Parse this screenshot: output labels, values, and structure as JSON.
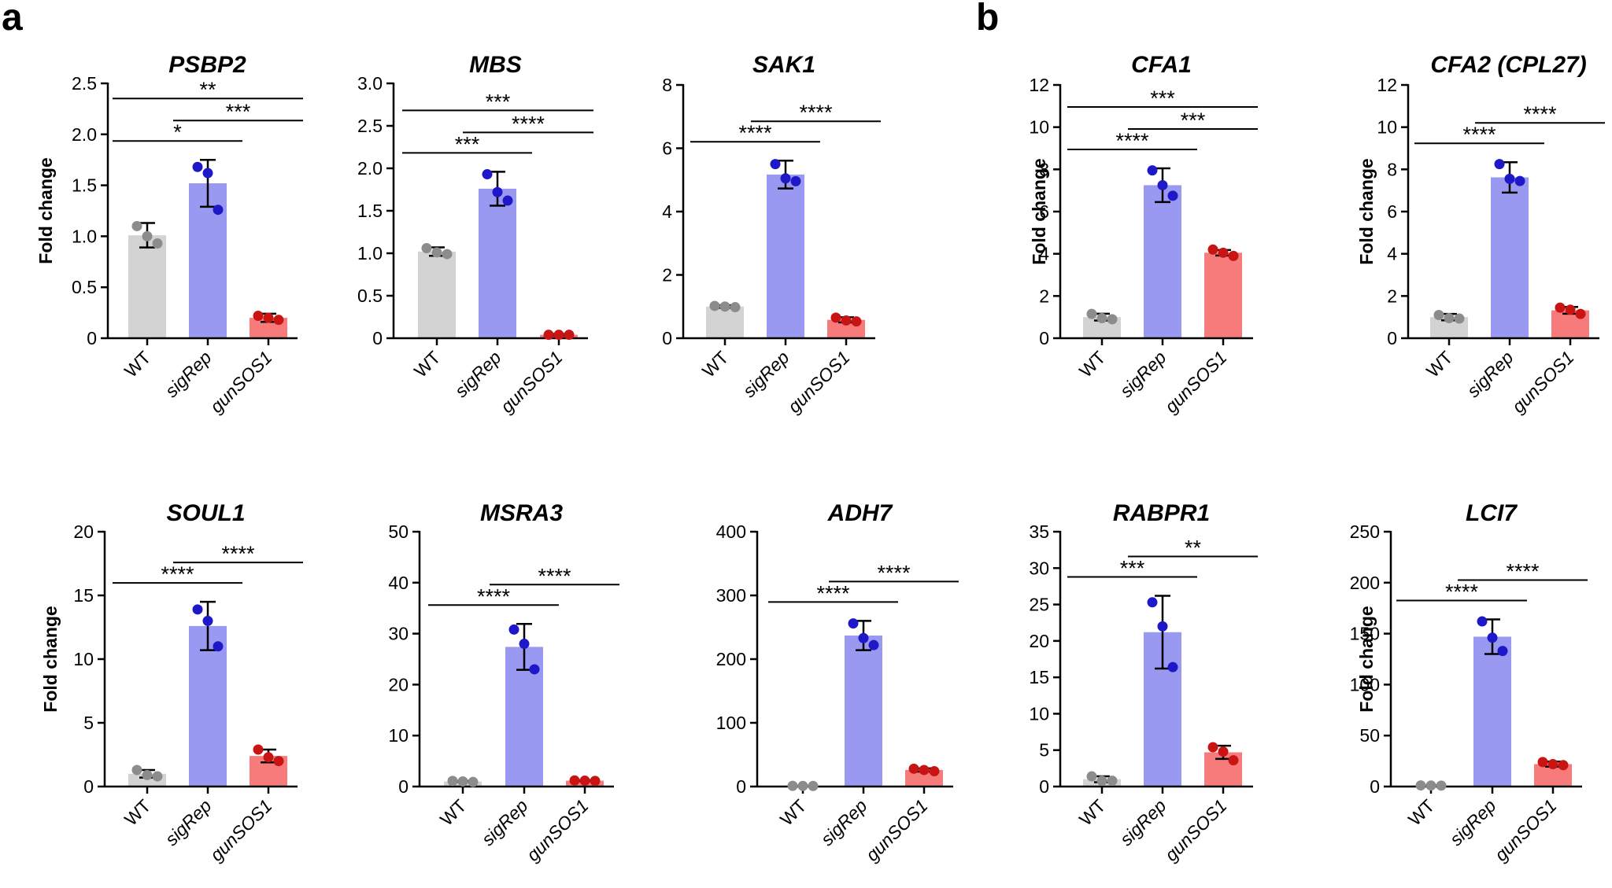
{
  "panel_labels": [
    "a",
    "b"
  ],
  "chart_data": [
    {
      "type": "bar",
      "title": "PSBP2",
      "ylabel": "Fold change",
      "ylim": [
        0,
        2.5
      ],
      "yticks": [
        "0",
        "0.5",
        "1.0",
        "1.5",
        "2.0",
        "2.5"
      ],
      "categories": [
        "WT",
        "sigRep",
        "gunSOS1"
      ],
      "italic_categories": [
        false,
        true,
        true
      ],
      "values": [
        1.01,
        1.52,
        0.2
      ],
      "errors": [
        0.12,
        0.23,
        0.04
      ],
      "points": [
        [
          1.1,
          1.0,
          0.93
        ],
        [
          1.68,
          1.62,
          1.26
        ],
        [
          0.22,
          0.2,
          0.18
        ]
      ],
      "colors": {
        "bars": [
          "#d3d3d3",
          "#9999f2",
          "#f77b7b"
        ],
        "points": [
          "#8c8c8c",
          "#1f18c9",
          "#c91414"
        ]
      },
      "significance": [
        {
          "from": 0,
          "to": 1,
          "label": "*"
        },
        {
          "from": 1,
          "to": 2,
          "label": "***"
        },
        {
          "from": 0,
          "to": 2,
          "label": "**"
        }
      ]
    },
    {
      "type": "bar",
      "title": "MBS",
      "ylabel": "",
      "ylim": [
        0,
        3.0
      ],
      "yticks": [
        "0",
        "0.5",
        "1.0",
        "1.5",
        "2.0",
        "2.5",
        "3.0"
      ],
      "categories": [
        "WT",
        "sigRep",
        "gunSOS1"
      ],
      "italic_categories": [
        false,
        true,
        true
      ],
      "values": [
        1.02,
        1.76,
        0.04
      ],
      "errors": [
        0.05,
        0.2,
        0.01
      ],
      "points": [
        [
          1.06,
          1.01,
          0.99
        ],
        [
          1.93,
          1.72,
          1.62
        ],
        [
          0.04,
          0.04,
          0.04
        ]
      ],
      "colors": {
        "bars": [
          "#d3d3d3",
          "#9999f2",
          "#f77b7b"
        ],
        "points": [
          "#8c8c8c",
          "#1f18c9",
          "#c91414"
        ]
      },
      "significance": [
        {
          "from": 0,
          "to": 1,
          "label": "***"
        },
        {
          "from": 1,
          "to": 2,
          "label": "****"
        },
        {
          "from": 0,
          "to": 2,
          "label": "***"
        }
      ]
    },
    {
      "type": "bar",
      "title": "SAK1",
      "ylabel": "",
      "ylim": [
        0,
        8
      ],
      "yticks": [
        "0",
        "2",
        "4",
        "6",
        "8"
      ],
      "categories": [
        "WT",
        "sigRep",
        "gunSOS1"
      ],
      "italic_categories": [
        false,
        true,
        true
      ],
      "values": [
        1.0,
        5.17,
        0.58
      ],
      "errors": [
        0.04,
        0.44,
        0.08
      ],
      "points": [
        [
          1.02,
          1.0,
          0.98
        ],
        [
          5.5,
          5.05,
          4.96
        ],
        [
          0.65,
          0.56,
          0.53
        ]
      ],
      "colors": {
        "bars": [
          "#d3d3d3",
          "#9999f2",
          "#f77b7b"
        ],
        "points": [
          "#8c8c8c",
          "#1f18c9",
          "#c91414"
        ]
      },
      "significance": [
        {
          "from": 0,
          "to": 1,
          "label": "****"
        },
        {
          "from": 1,
          "to": 2,
          "label": "****"
        }
      ]
    },
    {
      "type": "bar",
      "title": "CFA1",
      "ylabel": "Fold change",
      "ylim": [
        0,
        12
      ],
      "yticks": [
        "0",
        "2",
        "4",
        "6",
        "8",
        "10",
        "12"
      ],
      "categories": [
        "WT",
        "sigRep",
        "gunSOS1"
      ],
      "italic_categories": [
        false,
        true,
        true
      ],
      "values": [
        1.0,
        7.25,
        4.05
      ],
      "errors": [
        0.16,
        0.8,
        0.13
      ],
      "points": [
        [
          1.15,
          0.95,
          0.9
        ],
        [
          7.95,
          7.25,
          6.75
        ],
        [
          4.2,
          4.05,
          3.9
        ]
      ],
      "colors": {
        "bars": [
          "#d3d3d3",
          "#9999f2",
          "#f77b7b"
        ],
        "points": [
          "#8c8c8c",
          "#1f18c9",
          "#c91414"
        ]
      },
      "significance": [
        {
          "from": 0,
          "to": 1,
          "label": "****"
        },
        {
          "from": 1,
          "to": 2,
          "label": "***"
        },
        {
          "from": 0,
          "to": 2,
          "label": "***"
        }
      ]
    },
    {
      "type": "bar",
      "title": "CFA2 (CPL27)",
      "ylabel": "Fold change",
      "ylim": [
        0,
        12
      ],
      "yticks": [
        "0",
        "2",
        "4",
        "6",
        "8",
        "10",
        "12"
      ],
      "categories": [
        "WT",
        "sigRep",
        "gunSOS1"
      ],
      "italic_categories": [
        false,
        true,
        true
      ],
      "values": [
        1.0,
        7.62,
        1.32
      ],
      "errors": [
        0.15,
        0.72,
        0.16
      ],
      "points": [
        [
          1.1,
          0.95,
          0.93
        ],
        [
          8.25,
          7.55,
          7.45
        ],
        [
          1.45,
          1.35,
          1.15
        ]
      ],
      "colors": {
        "bars": [
          "#d3d3d3",
          "#9999f2",
          "#f77b7b"
        ],
        "points": [
          "#8c8c8c",
          "#1f18c9",
          "#c91414"
        ]
      },
      "significance": [
        {
          "from": 0,
          "to": 1,
          "label": "****"
        },
        {
          "from": 1,
          "to": 2,
          "label": "****"
        }
      ]
    },
    {
      "type": "bar",
      "title": "SOUL1",
      "ylabel": "Fold change",
      "ylim": [
        0,
        20
      ],
      "yticks": [
        "0",
        "5",
        "10",
        "15",
        "20"
      ],
      "categories": [
        "WT",
        "sigRep",
        "gunSOS1"
      ],
      "italic_categories": [
        false,
        true,
        true
      ],
      "values": [
        1.0,
        12.6,
        2.4
      ],
      "errors": [
        0.3,
        1.9,
        0.5
      ],
      "points": [
        [
          1.3,
          0.9,
          0.8
        ],
        [
          13.9,
          13.0,
          11.0
        ],
        [
          2.9,
          2.3,
          2.0
        ]
      ],
      "colors": {
        "bars": [
          "#d3d3d3",
          "#9999f2",
          "#f77b7b"
        ],
        "points": [
          "#8c8c8c",
          "#1f18c9",
          "#c91414"
        ]
      },
      "significance": [
        {
          "from": 0,
          "to": 1,
          "label": "****"
        },
        {
          "from": 1,
          "to": 2,
          "label": "****"
        }
      ]
    },
    {
      "type": "bar",
      "title": "MSRA3",
      "ylabel": "",
      "ylim": [
        0,
        50
      ],
      "yticks": [
        "0",
        "10",
        "20",
        "30",
        "40",
        "50"
      ],
      "categories": [
        "WT",
        "sigRep",
        "gunSOS1"
      ],
      "italic_categories": [
        false,
        true,
        true
      ],
      "values": [
        1.0,
        27.4,
        1.15
      ],
      "errors": [
        0.1,
        4.5,
        0.1
      ],
      "points": [
        [
          1.1,
          1.0,
          0.9
        ],
        [
          30.8,
          28.0,
          23.0
        ],
        [
          1.2,
          1.15,
          1.1
        ]
      ],
      "colors": {
        "bars": [
          "#d3d3d3",
          "#9999f2",
          "#f77b7b"
        ],
        "points": [
          "#8c8c8c",
          "#1f18c9",
          "#c91414"
        ]
      },
      "significance": [
        {
          "from": 0,
          "to": 1,
          "label": "****"
        },
        {
          "from": 1,
          "to": 2,
          "label": "****"
        }
      ]
    },
    {
      "type": "bar",
      "title": "ADH7",
      "ylabel": "",
      "ylim": [
        0,
        400
      ],
      "yticks": [
        "0",
        "100",
        "200",
        "300",
        "400"
      ],
      "categories": [
        "WT",
        "sigRep",
        "gunSOS1"
      ],
      "italic_categories": [
        false,
        true,
        true
      ],
      "values": [
        1.0,
        237,
        26
      ],
      "errors": [
        0.2,
        23,
        2.5
      ],
      "points": [
        [
          1.1,
          1.0,
          0.9
        ],
        [
          256,
          233,
          222
        ],
        [
          28,
          26,
          24
        ]
      ],
      "colors": {
        "bars": [
          "#d3d3d3",
          "#9999f2",
          "#f77b7b"
        ],
        "points": [
          "#8c8c8c",
          "#1f18c9",
          "#c91414"
        ]
      },
      "significance": [
        {
          "from": 0,
          "to": 1,
          "label": "****"
        },
        {
          "from": 1,
          "to": 2,
          "label": "****"
        }
      ]
    },
    {
      "type": "bar",
      "title": "RABPR1",
      "ylabel": "",
      "ylim": [
        0,
        35
      ],
      "yticks": [
        "0",
        "5",
        "10",
        "15",
        "20",
        "25",
        "30",
        "35"
      ],
      "categories": [
        "WT",
        "sigRep",
        "gunSOS1"
      ],
      "italic_categories": [
        false,
        true,
        true
      ],
      "values": [
        1.0,
        21.2,
        4.7
      ],
      "errors": [
        0.4,
        5.0,
        0.9
      ],
      "points": [
        [
          1.4,
          0.8,
          0.8
        ],
        [
          25.3,
          22.0,
          16.4
        ],
        [
          5.4,
          4.8,
          3.6
        ]
      ],
      "colors": {
        "bars": [
          "#d3d3d3",
          "#9999f2",
          "#f77b7b"
        ],
        "points": [
          "#8c8c8c",
          "#1f18c9",
          "#c91414"
        ]
      },
      "significance": [
        {
          "from": 0,
          "to": 1,
          "label": "***"
        },
        {
          "from": 1,
          "to": 2,
          "label": "**"
        }
      ]
    },
    {
      "type": "bar",
      "title": "LCI7",
      "ylabel": "Fold change",
      "ylim": [
        0,
        250
      ],
      "yticks": [
        "0",
        "50",
        "100",
        "150",
        "200",
        "250"
      ],
      "categories": [
        "WT",
        "sigRep",
        "gunSOS1"
      ],
      "italic_categories": [
        false,
        true,
        true
      ],
      "values": [
        1.0,
        147,
        22
      ],
      "errors": [
        0.2,
        17,
        2.5
      ],
      "points": [
        [
          1.1,
          1.0,
          0.9
        ],
        [
          162,
          146,
          133
        ],
        [
          24,
          22,
          21
        ]
      ],
      "colors": {
        "bars": [
          "#d3d3d3",
          "#9999f2",
          "#f77b7b"
        ],
        "points": [
          "#8c8c8c",
          "#1f18c9",
          "#c91414"
        ]
      },
      "significance": [
        {
          "from": 0,
          "to": 1,
          "label": "****"
        },
        {
          "from": 1,
          "to": 2,
          "label": "****"
        }
      ]
    }
  ]
}
